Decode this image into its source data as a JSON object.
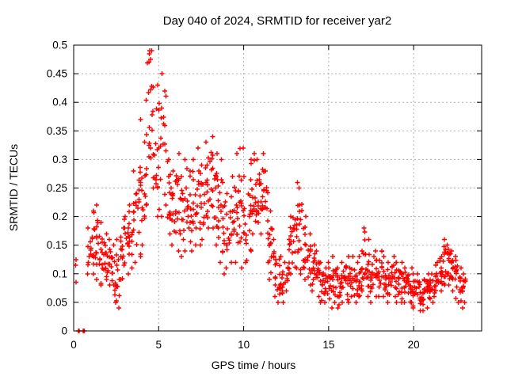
{
  "chart_data": {
    "type": "scatter",
    "title": "Day 040 of 2024, SRMTID for receiver yar2",
    "xlabel": "GPS time / hours",
    "ylabel": "SRMTID / TECUs",
    "xlim": [
      0,
      24
    ],
    "ylim": [
      0,
      0.5
    ],
    "xticks": [
      0,
      5,
      10,
      15,
      20
    ],
    "xtick_labels": [
      "0",
      "5",
      "10",
      "15",
      "20"
    ],
    "yticks": [
      0,
      0.05,
      0.1,
      0.15,
      0.2,
      0.25,
      0.3,
      0.35,
      0.4,
      0.45,
      0.5
    ],
    "ytick_labels": [
      "0",
      "0.05",
      "0.1",
      "0.15",
      "0.2",
      "0.25",
      "0.3",
      "0.35",
      "0.4",
      "0.45",
      "0.5"
    ],
    "grid": {
      "visible": true,
      "style": "dashed",
      "at_xticks": [
        5,
        10,
        15,
        20
      ],
      "at_yticks": [
        0.05,
        0.1,
        0.15,
        0.2,
        0.25,
        0.3,
        0.35,
        0.4,
        0.45
      ]
    },
    "legend": "none",
    "series": [
      {
        "name": "SRMTID",
        "marker": "plus",
        "color": "#ff0000",
        "points_exact": [
          [
            0.28,
            0
          ],
          [
            0.33,
            0
          ],
          [
            0.55,
            0
          ],
          [
            0.6,
            0
          ],
          [
            0.64,
            0
          ],
          [
            0.12,
            0.115
          ],
          [
            0.15,
            0.125
          ],
          [
            0.13,
            0.085
          ],
          [
            4.45,
            0.485
          ],
          [
            4.48,
            0.49
          ],
          [
            4.52,
            0.475
          ]
        ],
        "density_bins_comment": "Envelope of the dense scatter cloud read from the plot: [hour_center, y_min_TECUs, y_max_TECUs, approx_point_count]",
        "density_bins": [
          [
            0.9,
            0.1,
            0.18,
            8
          ],
          [
            1.1,
            0.1,
            0.21,
            13
          ],
          [
            1.35,
            0.09,
            0.22,
            13
          ],
          [
            1.6,
            0.08,
            0.19,
            13
          ],
          [
            1.85,
            0.09,
            0.17,
            12
          ],
          [
            2.1,
            0.08,
            0.16,
            12
          ],
          [
            2.35,
            0.05,
            0.15,
            12
          ],
          [
            2.6,
            0.04,
            0.16,
            12
          ],
          [
            2.85,
            0.09,
            0.18,
            12
          ],
          [
            3.1,
            0.1,
            0.2,
            12
          ],
          [
            3.35,
            0.11,
            0.22,
            12
          ],
          [
            3.6,
            0.12,
            0.28,
            12
          ],
          [
            3.85,
            0.13,
            0.37,
            13
          ],
          [
            4.1,
            0.15,
            0.33,
            12
          ],
          [
            4.35,
            0.22,
            0.47,
            13
          ],
          [
            4.6,
            0.25,
            0.49,
            12
          ],
          [
            4.85,
            0.2,
            0.43,
            12
          ],
          [
            5.1,
            0.2,
            0.45,
            12
          ],
          [
            5.35,
            0.22,
            0.42,
            10
          ],
          [
            5.6,
            0.17,
            0.3,
            12
          ],
          [
            5.85,
            0.15,
            0.28,
            12
          ],
          [
            6.1,
            0.14,
            0.31,
            12
          ],
          [
            6.35,
            0.13,
            0.27,
            12
          ],
          [
            6.6,
            0.14,
            0.3,
            12
          ],
          [
            6.85,
            0.14,
            0.28,
            12
          ],
          [
            7.1,
            0.15,
            0.3,
            12
          ],
          [
            7.35,
            0.15,
            0.32,
            12
          ],
          [
            7.6,
            0.16,
            0.29,
            12
          ],
          [
            7.85,
            0.18,
            0.33,
            13
          ],
          [
            8.1,
            0.18,
            0.34,
            13
          ],
          [
            8.35,
            0.15,
            0.31,
            12
          ],
          [
            8.6,
            0.12,
            0.3,
            12
          ],
          [
            8.85,
            0.1,
            0.26,
            12
          ],
          [
            9.1,
            0.11,
            0.24,
            12
          ],
          [
            9.35,
            0.12,
            0.27,
            12
          ],
          [
            9.6,
            0.12,
            0.31,
            12
          ],
          [
            9.85,
            0.11,
            0.32,
            12
          ],
          [
            10.1,
            0.12,
            0.27,
            12
          ],
          [
            10.35,
            0.14,
            0.3,
            12
          ],
          [
            10.6,
            0.17,
            0.31,
            13
          ],
          [
            10.85,
            0.19,
            0.3,
            13
          ],
          [
            11.1,
            0.17,
            0.31,
            13
          ],
          [
            11.35,
            0.12,
            0.28,
            12
          ],
          [
            11.6,
            0.09,
            0.21,
            12
          ],
          [
            11.85,
            0.06,
            0.16,
            12
          ],
          [
            12.1,
            0.05,
            0.13,
            12
          ],
          [
            12.35,
            0.05,
            0.12,
            12
          ],
          [
            12.6,
            0.07,
            0.16,
            12
          ],
          [
            12.85,
            0.1,
            0.2,
            12
          ],
          [
            13.1,
            0.11,
            0.26,
            13
          ],
          [
            13.35,
            0.1,
            0.25,
            12
          ],
          [
            13.6,
            0.09,
            0.2,
            12
          ],
          [
            13.85,
            0.08,
            0.17,
            12
          ],
          [
            14.1,
            0.07,
            0.15,
            12
          ],
          [
            14.35,
            0.06,
            0.14,
            12
          ],
          [
            14.6,
            0.05,
            0.12,
            12
          ],
          [
            14.85,
            0.05,
            0.12,
            12
          ],
          [
            15.1,
            0.04,
            0.11,
            12
          ],
          [
            15.35,
            0.05,
            0.13,
            12
          ],
          [
            15.6,
            0.04,
            0.11,
            12
          ],
          [
            15.85,
            0.05,
            0.12,
            12
          ],
          [
            16.1,
            0.05,
            0.13,
            12
          ],
          [
            16.35,
            0.06,
            0.13,
            12
          ],
          [
            16.6,
            0.05,
            0.12,
            12
          ],
          [
            16.85,
            0.06,
            0.13,
            12
          ],
          [
            17.05,
            0.07,
            0.18,
            13
          ],
          [
            17.3,
            0.06,
            0.16,
            12
          ],
          [
            17.55,
            0.05,
            0.13,
            12
          ],
          [
            17.8,
            0.06,
            0.14,
            12
          ],
          [
            18.05,
            0.06,
            0.14,
            12
          ],
          [
            18.3,
            0.06,
            0.13,
            12
          ],
          [
            18.55,
            0.05,
            0.12,
            12
          ],
          [
            18.8,
            0.06,
            0.13,
            12
          ],
          [
            19.05,
            0.05,
            0.12,
            12
          ],
          [
            19.3,
            0.05,
            0.12,
            12
          ],
          [
            19.55,
            0.05,
            0.11,
            12
          ],
          [
            19.8,
            0.05,
            0.11,
            12
          ],
          [
            20.05,
            0.04,
            0.1,
            12
          ],
          [
            20.3,
            0.035,
            0.1,
            12
          ],
          [
            20.55,
            0.035,
            0.09,
            12
          ],
          [
            20.8,
            0.04,
            0.1,
            12
          ],
          [
            21.05,
            0.05,
            0.1,
            12
          ],
          [
            21.3,
            0.06,
            0.12,
            12
          ],
          [
            21.55,
            0.07,
            0.13,
            12
          ],
          [
            21.8,
            0.08,
            0.16,
            13
          ],
          [
            22.05,
            0.08,
            0.15,
            12
          ],
          [
            22.3,
            0.07,
            0.14,
            12
          ],
          [
            22.55,
            0.05,
            0.13,
            12
          ],
          [
            22.8,
            0.04,
            0.11,
            12
          ],
          [
            23.0,
            0.05,
            0.1,
            8
          ]
        ],
        "max_point": [
          4.48,
          0.49
        ]
      }
    ]
  },
  "colors": {
    "marker": "#ff0000",
    "grid": "#b0b0b0",
    "axis": "#000000",
    "background": "#ffffff",
    "text": "#000000"
  }
}
